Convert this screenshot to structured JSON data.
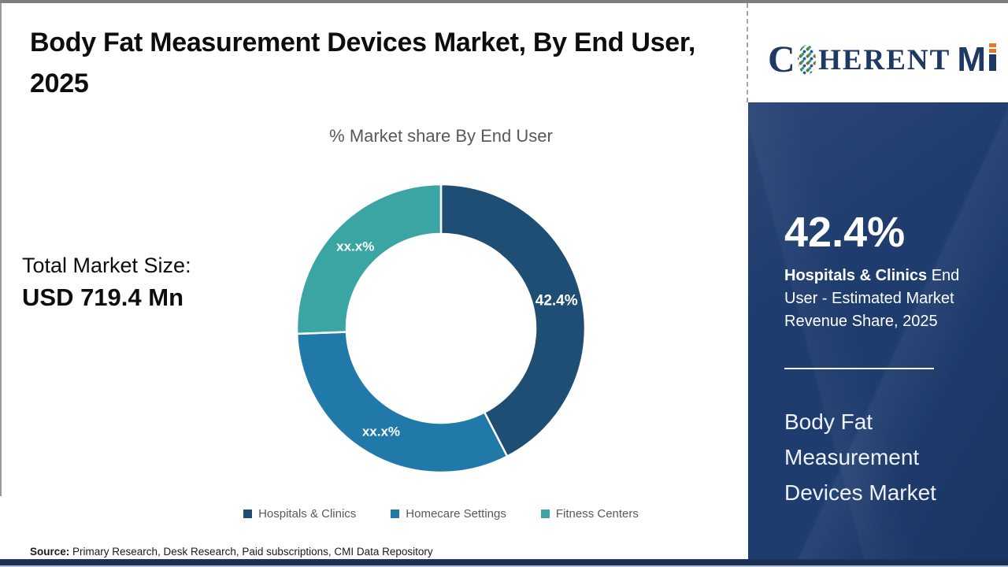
{
  "header": {
    "title": "Body Fat Measurement Devices Market, By End User, 2025"
  },
  "logo": {
    "part_c": "C",
    "part_herent": "HERENT",
    "part_m": "M"
  },
  "left_stat": {
    "label": "Total Market Size:",
    "value": "USD 719.4 Mn"
  },
  "chart_data": {
    "type": "pie",
    "donut": true,
    "title": "% Market share By End User",
    "categories": [
      "Hospitals & Clinics",
      "Homecare Settings",
      "Fitness Centers"
    ],
    "values": [
      42.4,
      32.0,
      25.6
    ],
    "display_labels": [
      "42.4%",
      "xx.x%",
      "xx.x%"
    ],
    "colors": [
      "#1f4e75",
      "#2079a9",
      "#3aa5a2"
    ],
    "legend_position": "bottom",
    "start_angle_deg": 0,
    "outer_radius": 183,
    "inner_radius": 120,
    "label_radius": 151
  },
  "sidebar": {
    "stat_value": "42.4%",
    "stat_highlight": "Hospitals & Clinics",
    "stat_rest": " End User - Estimated Market Revenue Share, 2025",
    "panel_title": "Body Fat Measurement Devices Market",
    "bg_color": "#1e3c6e"
  },
  "footer": {
    "source_label": "Source:",
    "source_text": " Primary Research, Desk Research, Paid subscriptions, CMI Data Repository"
  }
}
